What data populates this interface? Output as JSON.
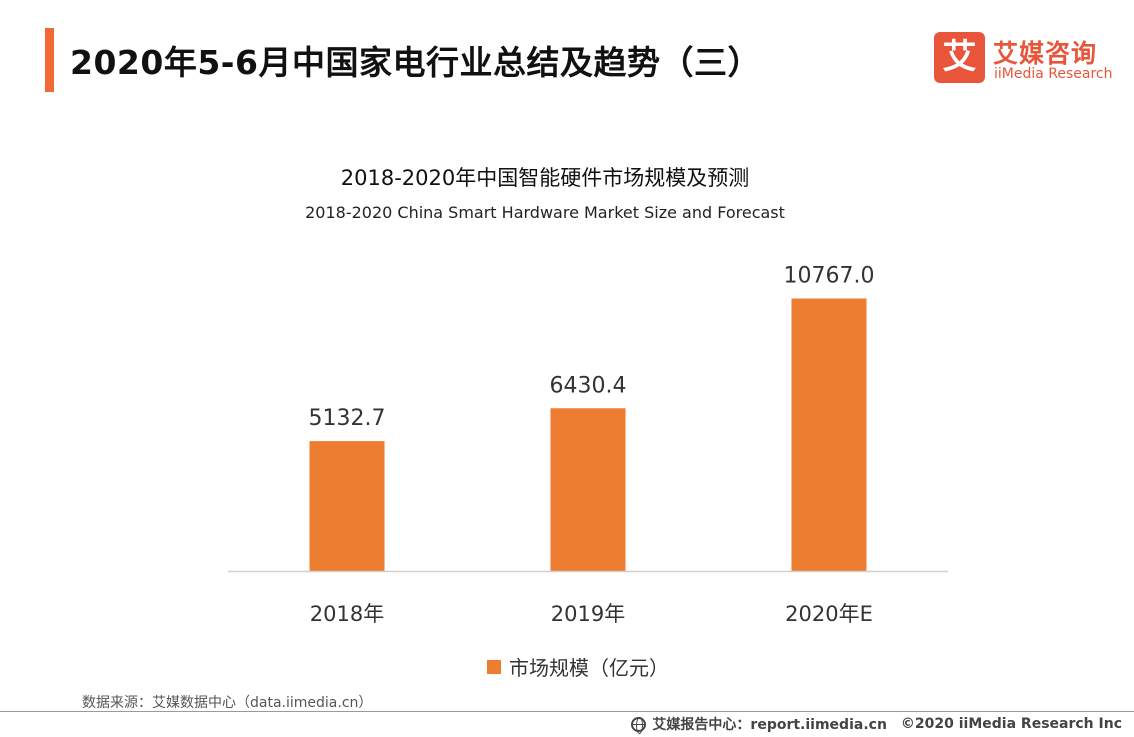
{
  "page": {
    "title": "2020年5-6月中国家电行业总结及趋势（三）",
    "accent_color": "#f06a35"
  },
  "logo": {
    "mark": "艾",
    "name_cn": "艾媒咨询",
    "name_en": "iiMedia Research",
    "color": "#e8553a"
  },
  "chart_data": {
    "type": "bar",
    "title": "2018-2020年中国智能硬件市场规模及预测",
    "subtitle": "2018-2020 China Smart Hardware Market Size and Forecast",
    "categories": [
      "2018年",
      "2019年",
      "2020年E"
    ],
    "series": [
      {
        "name": "市场规模（亿元）",
        "values": [
          5132.7,
          6430.4,
          10767.0
        ],
        "value_labels": [
          "5132.7",
          "6430.4",
          "10767.0"
        ],
        "color": "#ed7d31"
      }
    ],
    "ylim": [
      0,
      11500
    ],
    "grid": false,
    "legend_position": "bottom-center"
  },
  "source": "数据来源：艾媒数据中心（data.iimedia.cn）",
  "footer": {
    "icon": "globe-icon",
    "report_site": "艾媒报告中心：report.iimedia.cn",
    "copyright": "©2020  iiMedia Research  Inc"
  }
}
